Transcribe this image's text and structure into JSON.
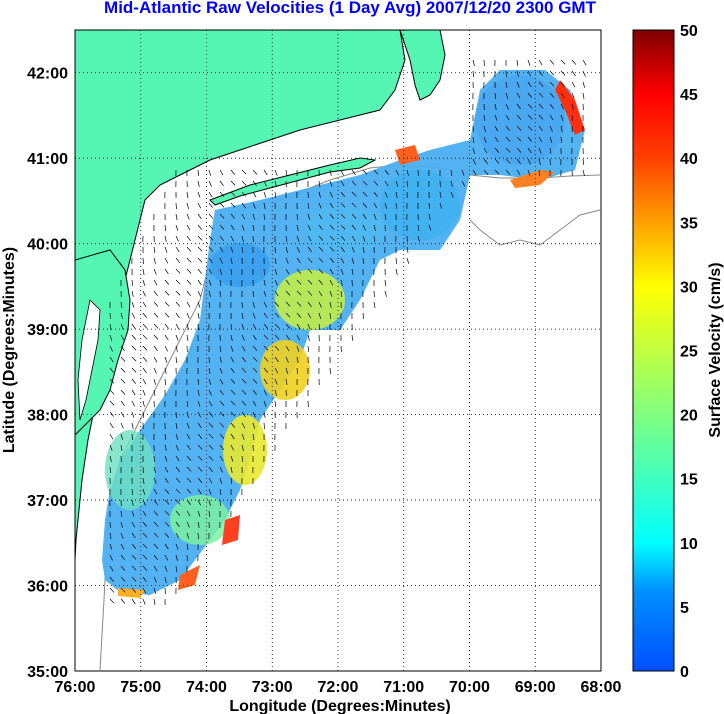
{
  "title": "Mid-Atlantic Raw Velocities (1 Day Avg) 2007/12/20 2300 GMT",
  "axes": {
    "xlabel": "Longitude (Degrees:Minutes)",
    "ylabel": "Latitude (Degrees:Minutes)",
    "xticks": [
      "76:00",
      "75:00",
      "74:00",
      "73:00",
      "72:00",
      "71:00",
      "70:00",
      "69:00",
      "68:00"
    ],
    "yticks": [
      "42:00",
      "41:00",
      "40:00",
      "39:00",
      "38:00",
      "37:00",
      "36:00",
      "35:00"
    ],
    "lon_range": [
      -76,
      -68
    ],
    "lat_range": [
      35,
      42.5
    ],
    "grid": "dotted"
  },
  "colorbar": {
    "label": "Surface Velocity (cm/s)",
    "ticks": [
      "50",
      "45",
      "40",
      "35",
      "30",
      "25",
      "20",
      "15",
      "10",
      "5",
      "0"
    ],
    "range": [
      0,
      50
    ],
    "colormap": "jet"
  },
  "colors": {
    "land": "#55f5b4",
    "title": "#0000ff",
    "coast": "#000000",
    "bathymetry": "#888888"
  }
}
